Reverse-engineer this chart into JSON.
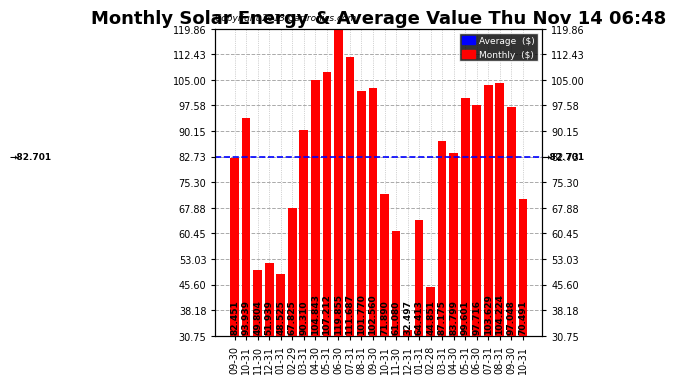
{
  "title": "Monthly Solar Energy & Average Value Thu Nov 14 06:48",
  "copyright": "Copyright 2013 Cartronics.com",
  "categories": [
    "09-30",
    "10-31",
    "11-30",
    "12-31",
    "01-31",
    "02-29",
    "03-31",
    "04-30",
    "05-31",
    "06-30",
    "07-31",
    "08-31",
    "09-30",
    "10-31",
    "11-30",
    "12-31",
    "01-31",
    "02-28",
    "03-31",
    "04-30",
    "05-31",
    "06-30",
    "07-31",
    "08-31",
    "09-30",
    "10-31"
  ],
  "values": [
    82.451,
    93.939,
    49.804,
    51.939,
    48.525,
    67.825,
    90.31,
    104.843,
    107.212,
    119.855,
    111.687,
    101.77,
    102.56,
    71.89,
    61.08,
    32.497,
    64.413,
    44.851,
    87.175,
    83.799,
    99.601,
    97.716,
    103.629,
    104.224,
    97.048,
    70.491
  ],
  "average": 82.701,
  "bar_color": "#FF0000",
  "avg_line_color": "#0000FF",
  "background_color": "#FFFFFF",
  "plot_bg_color": "#FFFFFF",
  "grid_color": "#AAAAAA",
  "yticks": [
    30.75,
    38.18,
    45.6,
    53.03,
    60.45,
    67.88,
    75.3,
    82.73,
    90.15,
    97.58,
    105.0,
    112.43,
    119.86
  ],
  "ymin": 30.75,
  "ymax": 119.86,
  "title_fontsize": 13,
  "label_fontsize": 6.5,
  "tick_fontsize": 7,
  "avg_label": "82.701",
  "legend_avg_color": "#0000FF",
  "legend_monthly_color": "#FF0000"
}
